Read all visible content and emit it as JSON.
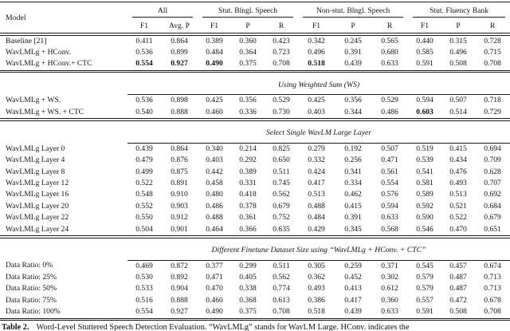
{
  "table": {
    "header": {
      "model": "Model",
      "groups": [
        {
          "label": "All",
          "cols": [
            "F1",
            "Avg. P"
          ]
        },
        {
          "label": "Stut. Blngl. Speech",
          "cols": [
            "F1",
            "P",
            "R"
          ]
        },
        {
          "label": "Non-stut. Blngl. Speech",
          "cols": [
            "F1",
            "P",
            "R"
          ]
        },
        {
          "label": "Stut. Fluency Bank",
          "cols": [
            "F1",
            "P",
            "R"
          ]
        }
      ]
    },
    "sections": [
      {
        "title": null,
        "rows": [
          {
            "model": "Baseline [21]",
            "values": [
              "0.411",
              "0.864",
              "0.389",
              "0.360",
              "0.423",
              "0.342",
              "0.245",
              "0.565",
              "0.440",
              "0.315",
              "0.728"
            ],
            "bold": []
          },
          {
            "model": "WavLMLg + HConv.",
            "values": [
              "0.536",
              "0.899",
              "0.484",
              "0.364",
              "0.723",
              "0.496",
              "0.391",
              "0.680",
              "0.585",
              "0.496",
              "0.715"
            ],
            "bold": []
          },
          {
            "model": "WavLMLg + HConv.+ CTC",
            "values": [
              "0.554",
              "0.927",
              "0.490",
              "0.375",
              "0.708",
              "0.518",
              "0.439",
              "0.633",
              "0.591",
              "0.508",
              "0.708"
            ],
            "bold": [
              0,
              1,
              2,
              5
            ]
          }
        ]
      },
      {
        "title": "Using Weighted Sum (WS)",
        "rows": [
          {
            "model": "WavLMLg + WS.",
            "values": [
              "0.536",
              "0.898",
              "0.425",
              "0.356",
              "0.529",
              "0.425",
              "0.356",
              "0.529",
              "0.594",
              "0.507",
              "0.718"
            ],
            "bold": []
          },
          {
            "model": "WavLMLg + WS. + CTC",
            "values": [
              "0.540",
              "0.888",
              "0.460",
              "0.336",
              "0.730",
              "0.403",
              "0.344",
              "0.486",
              "0.603",
              "0.514",
              "0.729"
            ],
            "bold": [
              8
            ]
          }
        ]
      },
      {
        "title": "Select Single WavLM Large Layer",
        "rows": [
          {
            "model": "WavLMLg Layer 0",
            "values": [
              "0.439",
              "0.864",
              "0.340",
              "0.214",
              "0.825",
              "0.279",
              "0.192",
              "0.507",
              "0.519",
              "0.415",
              "0.694"
            ],
            "bold": []
          },
          {
            "model": "WavLMLg Layer 4",
            "values": [
              "0.479",
              "0.876",
              "0.403",
              "0.292",
              "0.650",
              "0.332",
              "0.256",
              "0.471",
              "0.539",
              "0.434",
              "0.709"
            ],
            "bold": []
          },
          {
            "model": "WavLMLg Layer 8",
            "values": [
              "0.499",
              "0.875",
              "0.442",
              "0.389",
              "0.511",
              "0.424",
              "0.341",
              "0.561",
              "0.541",
              "0.476",
              "0.628"
            ],
            "bold": []
          },
          {
            "model": "WavLMLg Layer 12",
            "values": [
              "0.522",
              "0.891",
              "0.458",
              "0.331",
              "0.745",
              "0.417",
              "0.334",
              "0.554",
              "0.581",
              "0.493",
              "0.707"
            ],
            "bold": []
          },
          {
            "model": "WavLMLg Layer 16",
            "values": [
              "0.548",
              "0.910",
              "0.480",
              "0.418",
              "0.562",
              "0.513",
              "0.462",
              "0.576",
              "0.589",
              "0.513",
              "0.692"
            ],
            "bold": []
          },
          {
            "model": "WavLMLg Layer 20",
            "values": [
              "0.552",
              "0.903",
              "0.486",
              "0.378",
              "0.679",
              "0.488",
              "0.415",
              "0.594",
              "0.592",
              "0.521",
              "0.684"
            ],
            "bold": []
          },
          {
            "model": "WavLMLg Layer 22",
            "values": [
              "0.550",
              "0.912",
              "0.488",
              "0.361",
              "0.752",
              "0.484",
              "0.391",
              "0.633",
              "0.590",
              "0.522",
              "0.679"
            ],
            "bold": []
          },
          {
            "model": "WavLMLg Layer 24",
            "values": [
              "0.504",
              "0.901",
              "0.464",
              "0.366",
              "0.635",
              "0.429",
              "0.345",
              "0.568",
              "0.546",
              "0.470",
              "0.651"
            ],
            "bold": []
          }
        ]
      },
      {
        "title": "Different Finetune Dataset Size using “WavLMLg + HConv. + CTC”",
        "rows": [
          {
            "model": "Data Ratio: 0%",
            "values": [
              "0.469",
              "0.872",
              "0.377",
              "0.299",
              "0.511",
              "0.305",
              "0.259",
              "0.371",
              "0.545",
              "0.457",
              "0.674"
            ],
            "bold": []
          },
          {
            "model": "Data Ratio: 25%",
            "values": [
              "0.530",
              "0.892",
              "0.471",
              "0.405",
              "0.562",
              "0.362",
              "0.452",
              "0.302",
              "0.579",
              "0.487",
              "0.713"
            ],
            "bold": []
          },
          {
            "model": "Data Ratio: 50%",
            "values": [
              "0.533",
              "0.904",
              "0.470",
              "0.338",
              "0.774",
              "0.493",
              "0.413",
              "0.612",
              "0.579",
              "0.487",
              "0.713"
            ],
            "bold": []
          },
          {
            "model": "Data Ratio: 75%",
            "values": [
              "0.516",
              "0.888",
              "0.460",
              "0.368",
              "0.613",
              "0.386",
              "0.417",
              "0.360",
              "0.557",
              "0.472",
              "0.678"
            ],
            "bold": []
          },
          {
            "model": "Data Ratio: 100%",
            "values": [
              "0.554",
              "0.927",
              "0.490",
              "0.375",
              "0.708",
              "0.518",
              "0.439",
              "0.633",
              "0.591",
              "0.508",
              "0.708"
            ],
            "bold": []
          }
        ]
      }
    ]
  },
  "caption": {
    "label": "Table 2.",
    "text": "Word-Level Stuttered Speech Detection Evaluation. “WavLMLg” stands for WavLM Large. HConv. indicates the"
  }
}
